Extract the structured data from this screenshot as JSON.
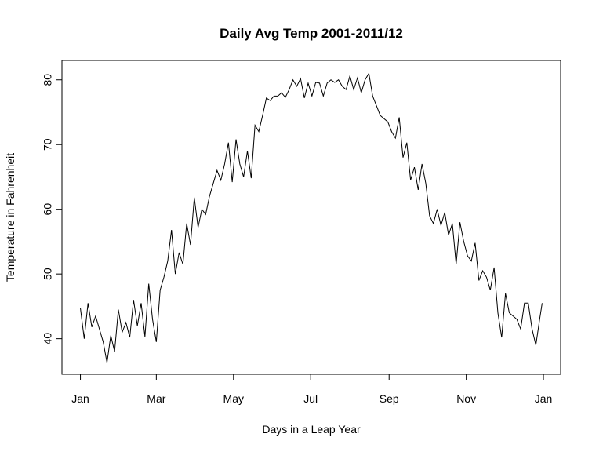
{
  "chart_data": {
    "type": "line",
    "title": "Daily Avg Temp 2001-2011/12",
    "x_label": "Days in a Leap Year",
    "y_label": "Temperature in Fahrenheit",
    "color": "#000000",
    "xlim": [
      -13.6,
      380.6
    ],
    "ylim": [
      34.5,
      83.0
    ],
    "xticks": [
      {
        "value": 1,
        "label": "Jan"
      },
      {
        "value": 61,
        "label": "Mar"
      },
      {
        "value": 122,
        "label": "May"
      },
      {
        "value": 183,
        "label": "Jul"
      },
      {
        "value": 245,
        "label": "Sep"
      },
      {
        "value": 306,
        "label": "Nov"
      },
      {
        "value": 367,
        "label": "Jan"
      }
    ],
    "yticks": [
      40,
      50,
      60,
      70,
      80
    ],
    "x": [
      1,
      4,
      7,
      10,
      13,
      16,
      19,
      22,
      25,
      28,
      31,
      34,
      37,
      40,
      43,
      46,
      49,
      52,
      55,
      58,
      61,
      64,
      67,
      70,
      73,
      76,
      79,
      82,
      85,
      88,
      91,
      94,
      97,
      100,
      103,
      106,
      109,
      112,
      115,
      118,
      121,
      124,
      127,
      130,
      133,
      136,
      139,
      142,
      145,
      148,
      151,
      154,
      157,
      160,
      163,
      166,
      169,
      172,
      175,
      178,
      181,
      184,
      187,
      190,
      193,
      196,
      199,
      202,
      205,
      208,
      211,
      214,
      217,
      220,
      223,
      226,
      229,
      232,
      235,
      238,
      241,
      244,
      247,
      250,
      253,
      256,
      259,
      262,
      265,
      268,
      271,
      274,
      277,
      280,
      283,
      286,
      289,
      292,
      295,
      298,
      301,
      304,
      307,
      310,
      313,
      316,
      319,
      322,
      325,
      328,
      331,
      334,
      337,
      340,
      343,
      346,
      349,
      352,
      355,
      358,
      361,
      364,
      366
    ],
    "values": [
      44.7,
      40,
      45.5,
      41.8,
      43.5,
      41.5,
      39.5,
      36.3,
      40.5,
      38,
      44.5,
      41,
      42.5,
      40.2,
      46,
      42,
      45.5,
      40.3,
      48.5,
      43,
      39.5,
      47.5,
      49.5,
      52,
      56.8,
      50,
      53.3,
      51.5,
      57.8,
      54.5,
      61.8,
      57.2,
      60,
      59.2,
      62,
      64,
      66,
      64.5,
      67,
      70.3,
      64.2,
      70.8,
      67,
      65,
      69,
      64.8,
      73,
      72,
      74.5,
      77.2,
      76.8,
      77.5,
      77.5,
      78,
      77.3,
      78.5,
      80,
      79,
      80.2,
      77.2,
      79.5,
      77.5,
      79.6,
      79.5,
      77.5,
      79.5,
      80,
      79.6,
      80,
      79,
      78.5,
      80.6,
      78.5,
      80.3,
      78,
      80,
      81,
      77.5,
      76,
      74.5,
      74,
      73.5,
      72,
      71,
      74.2,
      68,
      70.3,
      64.5,
      66.5,
      63,
      67,
      64,
      59,
      57.8,
      60,
      57.5,
      59.5,
      56,
      57.8,
      51.5,
      58,
      55,
      52.8,
      52,
      54.8,
      49,
      50.5,
      49.5,
      47.5,
      51,
      44,
      40.2,
      47,
      44,
      43.5,
      43,
      41.5,
      45.5,
      45.5,
      41.5,
      39,
      43,
      45.5
    ]
  }
}
